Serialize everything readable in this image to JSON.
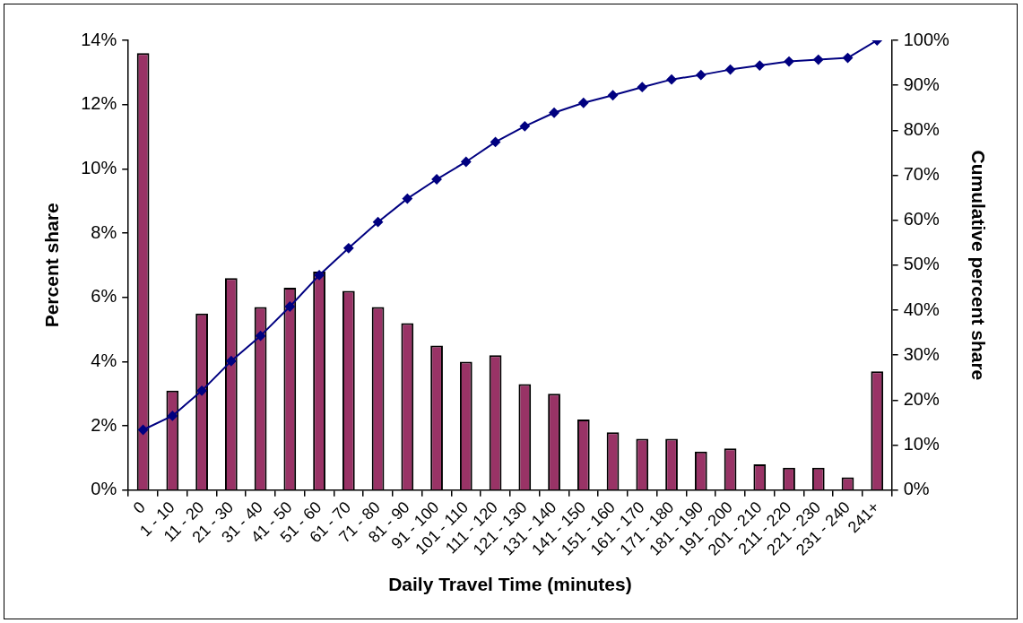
{
  "chart_data": {
    "type": "bar",
    "xlabel": "Daily Travel Time (minutes)",
    "ylabel": "Percent share",
    "y2label": "Cumulative percent share",
    "categories": [
      "0",
      "1 - 10",
      "11 - 20",
      "21 - 30",
      "31 - 40",
      "41 - 50",
      "51 - 60",
      "61 - 70",
      "71 - 80",
      "81 - 90",
      "91 - 100",
      "101 - 110",
      "111 - 120",
      "121 - 130",
      "131 - 140",
      "141 - 150",
      "151 - 160",
      "161 - 170",
      "171 - 180",
      "181 - 190",
      "191 - 200",
      "201 - 210",
      "211 - 220",
      "221 - 230",
      "231 - 240",
      "241+"
    ],
    "series": [
      {
        "color": "#993366",
        "values": [
          13.6,
          3.1,
          5.5,
          6.6,
          5.7,
          6.3,
          6.8,
          6.2,
          5.7,
          5.2,
          4.5,
          4.0,
          4.2,
          3.3,
          3.0,
          2.2,
          1.8,
          1.6,
          1.6,
          1.2,
          1.3,
          0.8,
          0.7,
          0.7,
          0.4,
          3.7
        ]
      },
      {
        "type": "line",
        "axis": "y2",
        "color": "#000080",
        "values": [
          13.4,
          16.5,
          22.1,
          28.7,
          34.3,
          40.8,
          47.8,
          53.8,
          59.6,
          64.8,
          69.1,
          73.0,
          77.4,
          80.9,
          83.9,
          86.1,
          87.8,
          89.6,
          91.3,
          92.3,
          93.5,
          94.4,
          95.3,
          95.7,
          96.1,
          100
        ]
      }
    ],
    "ylim": [
      0,
      14
    ],
    "yticks": [
      {
        "value": 0,
        "label": "0%"
      },
      {
        "value": 2,
        "label": "2%"
      },
      {
        "value": 4,
        "label": "4%"
      },
      {
        "value": 6,
        "label": "6%"
      },
      {
        "value": 8,
        "label": "8%"
      },
      {
        "value": 10,
        "label": "10%"
      },
      {
        "value": 12,
        "label": "12%"
      },
      {
        "value": 14,
        "label": "14%"
      }
    ],
    "y2lim": [
      0,
      100
    ],
    "y2ticks": [
      {
        "value": 0,
        "label": "0%"
      },
      {
        "value": 10,
        "label": "10%"
      },
      {
        "value": 20,
        "label": "20%"
      },
      {
        "value": 30,
        "label": "30%"
      },
      {
        "value": 40,
        "label": "40%"
      },
      {
        "value": 50,
        "label": "50%"
      },
      {
        "value": 60,
        "label": "60%"
      },
      {
        "value": 70,
        "label": "70%"
      },
      {
        "value": 80,
        "label": "80%"
      },
      {
        "value": 90,
        "label": "90%"
      },
      {
        "value": 100,
        "label": "100%"
      }
    ],
    "grid": false,
    "legend": false,
    "marker": "diamond",
    "line_style": "solid"
  }
}
